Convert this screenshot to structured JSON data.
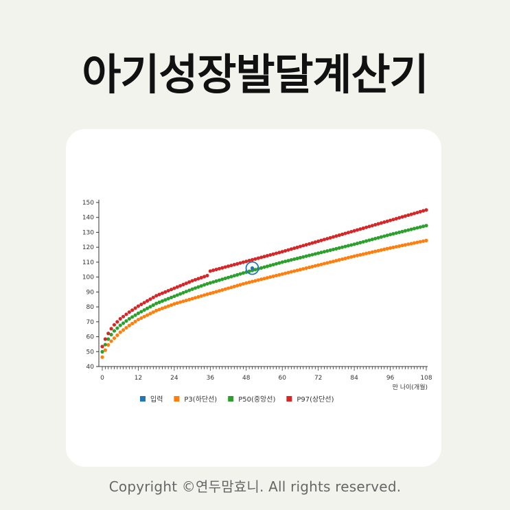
{
  "header": {
    "title": "아기성장발달계산기"
  },
  "footer": {
    "copyright": "Copyright ©연두맘효니. All rights reserved."
  },
  "colors": {
    "background": "#f3f3ee",
    "input": "#1f77b4",
    "p3": "#ff7f0e",
    "p50": "#2ca02c",
    "p97": "#d62728"
  },
  "chart_data": {
    "type": "line",
    "title": "",
    "xlabel": "만 나이(개월)",
    "ylabel": "",
    "xlim": [
      0,
      108
    ],
    "ylim": [
      40,
      150
    ],
    "x_ticks": [
      0,
      12,
      24,
      36,
      48,
      60,
      72,
      84,
      96,
      108
    ],
    "y_ticks": [
      40,
      50,
      60,
      70,
      80,
      90,
      100,
      110,
      120,
      130,
      140,
      150
    ],
    "legend_position": "bottom",
    "series": [
      {
        "name": "입력",
        "color": "#1f77b4",
        "points": [
          [
            50,
            106
          ]
        ]
      },
      {
        "name": "P3(하단선)",
        "color": "#ff7f0e",
        "anchors": [
          [
            0,
            46.3
          ],
          [
            1,
            51
          ],
          [
            2,
            54.5
          ],
          [
            3,
            57
          ],
          [
            4,
            59
          ],
          [
            6,
            63
          ],
          [
            9,
            67.5
          ],
          [
            12,
            71.5
          ],
          [
            18,
            77.5
          ],
          [
            24,
            82
          ],
          [
            30,
            85.5
          ],
          [
            35,
            88.5
          ],
          [
            36,
            89
          ],
          [
            48,
            96
          ],
          [
            60,
            102
          ],
          [
            72,
            108
          ],
          [
            84,
            114
          ],
          [
            96,
            119.5
          ],
          [
            108,
            124.5
          ]
        ]
      },
      {
        "name": "P50(중앙선)",
        "color": "#2ca02c",
        "anchors": [
          [
            0,
            49.9
          ],
          [
            1,
            54.7
          ],
          [
            2,
            58.4
          ],
          [
            3,
            61.4
          ],
          [
            4,
            63.9
          ],
          [
            6,
            67.6
          ],
          [
            9,
            72
          ],
          [
            12,
            75.7
          ],
          [
            18,
            82.3
          ],
          [
            24,
            87.1
          ],
          [
            30,
            91.9
          ],
          [
            35,
            95.5
          ],
          [
            36,
            96.1
          ],
          [
            48,
            103.3
          ],
          [
            60,
            110
          ],
          [
            72,
            116
          ],
          [
            84,
            122
          ],
          [
            96,
            128.5
          ],
          [
            108,
            134.5
          ]
        ]
      },
      {
        "name": "P97(상단선)",
        "color": "#d62728",
        "anchors": [
          [
            0,
            53.4
          ],
          [
            1,
            58.4
          ],
          [
            2,
            62.2
          ],
          [
            3,
            65.4
          ],
          [
            4,
            68
          ],
          [
            6,
            72
          ],
          [
            9,
            76.5
          ],
          [
            12,
            80.5
          ],
          [
            18,
            87.5
          ],
          [
            24,
            92.5
          ],
          [
            30,
            97.5
          ],
          [
            35,
            101
          ],
          [
            36,
            104
          ],
          [
            48,
            110.5
          ],
          [
            60,
            117
          ],
          [
            72,
            124
          ],
          [
            84,
            131
          ],
          [
            96,
            138
          ],
          [
            108,
            145
          ]
        ]
      }
    ]
  }
}
